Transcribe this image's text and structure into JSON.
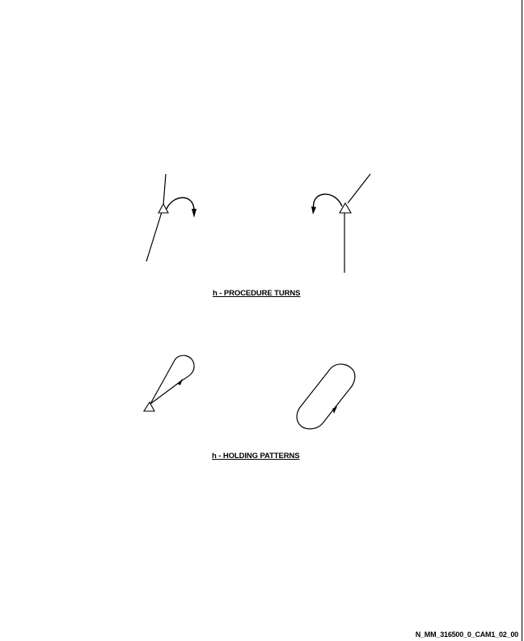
{
  "figure": {
    "procedure_turns_caption": "h - PROCEDURE TURNS",
    "holding_patterns_caption": "h - HOLDING PATTERNS",
    "symbols": {
      "procedure_turn_left": {
        "type": "procedure-turn",
        "icons": [
          "fix-triangle-icon",
          "turn-arrow-icon"
        ]
      },
      "procedure_turn_right": {
        "type": "procedure-turn",
        "icons": [
          "fix-triangle-icon",
          "turn-arrow-icon"
        ]
      },
      "holding_teardrop": {
        "type": "holding-pattern",
        "icons": [
          "fix-triangle-icon",
          "direction-arrow-icon"
        ]
      },
      "holding_racetrack": {
        "type": "holding-pattern",
        "icons": [
          "direction-arrow-icon"
        ]
      }
    }
  },
  "footer": {
    "document_ref": "N_MM_316500_0_CAM1_02_00"
  },
  "colors": {
    "line": "#000000",
    "background": "#ffffff"
  }
}
